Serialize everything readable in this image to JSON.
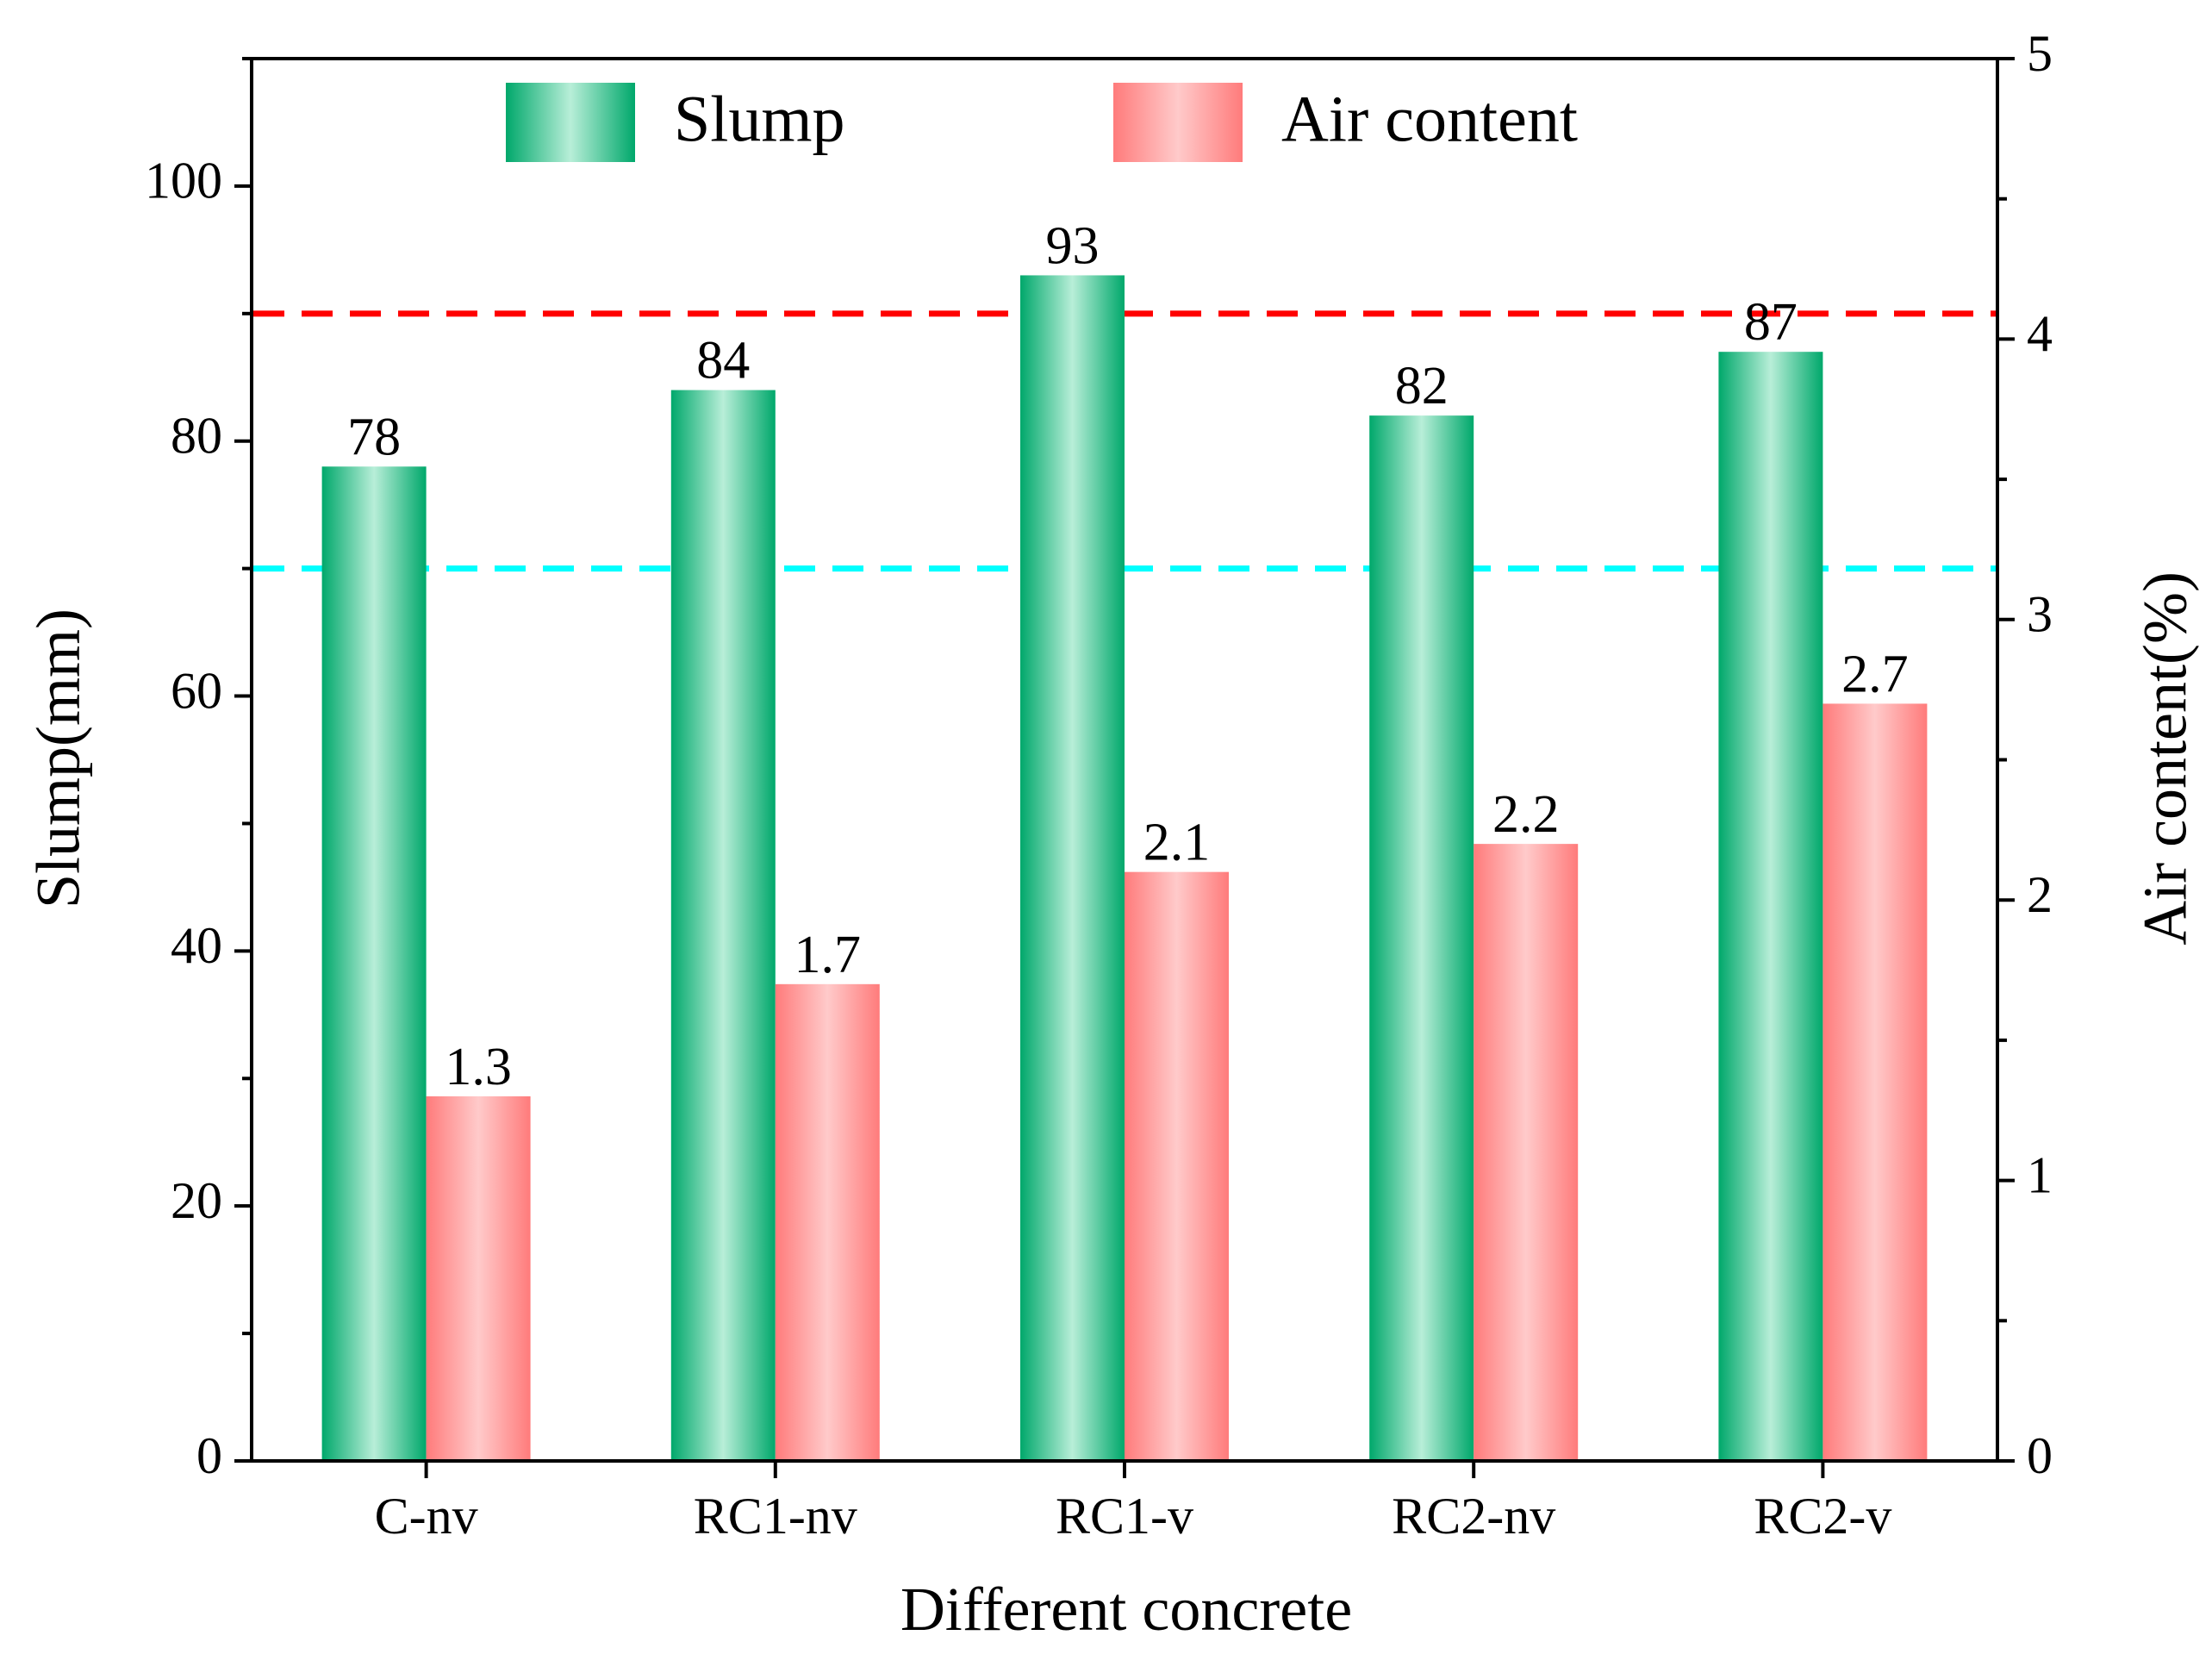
{
  "chart_data": {
    "type": "bar",
    "categories": [
      "C-nv",
      "RC1-nv",
      "RC1-v",
      "RC2-nv",
      "RC2-v"
    ],
    "series": [
      {
        "name": "Slump",
        "axis": "left",
        "values": [
          78,
          84,
          93,
          82,
          87
        ],
        "labels": [
          "78",
          "84",
          "93",
          "82",
          "87"
        ],
        "colors": {
          "edge": "#00a86b",
          "center": "#b8eed8"
        }
      },
      {
        "name": "Air content",
        "axis": "right",
        "values": [
          1.3,
          1.7,
          2.1,
          2.2,
          2.7
        ],
        "labels": [
          "1.3",
          "1.7",
          "2.1",
          "2.2",
          "2.7"
        ],
        "colors": {
          "edge": "#ff7b7b",
          "center": "#ffcaca"
        }
      }
    ],
    "reference_lines": [
      {
        "axis": "left",
        "value": 90,
        "color": "#ff0000"
      },
      {
        "axis": "left",
        "value": 70,
        "color": "#00ffff"
      }
    ],
    "xlabel": "Different concrete",
    "ylabel": "Slump(mm)",
    "y2label": "Air content(%)",
    "ylim": [
      0,
      110
    ],
    "yticks": [
      0,
      20,
      40,
      60,
      80,
      100
    ],
    "y2lim": [
      0,
      5
    ],
    "y2ticks": [
      0,
      1,
      2,
      3,
      4,
      5
    ],
    "legend": {
      "position": "top-center",
      "entries": [
        "Slump",
        "Air content"
      ]
    },
    "grid": false
  }
}
